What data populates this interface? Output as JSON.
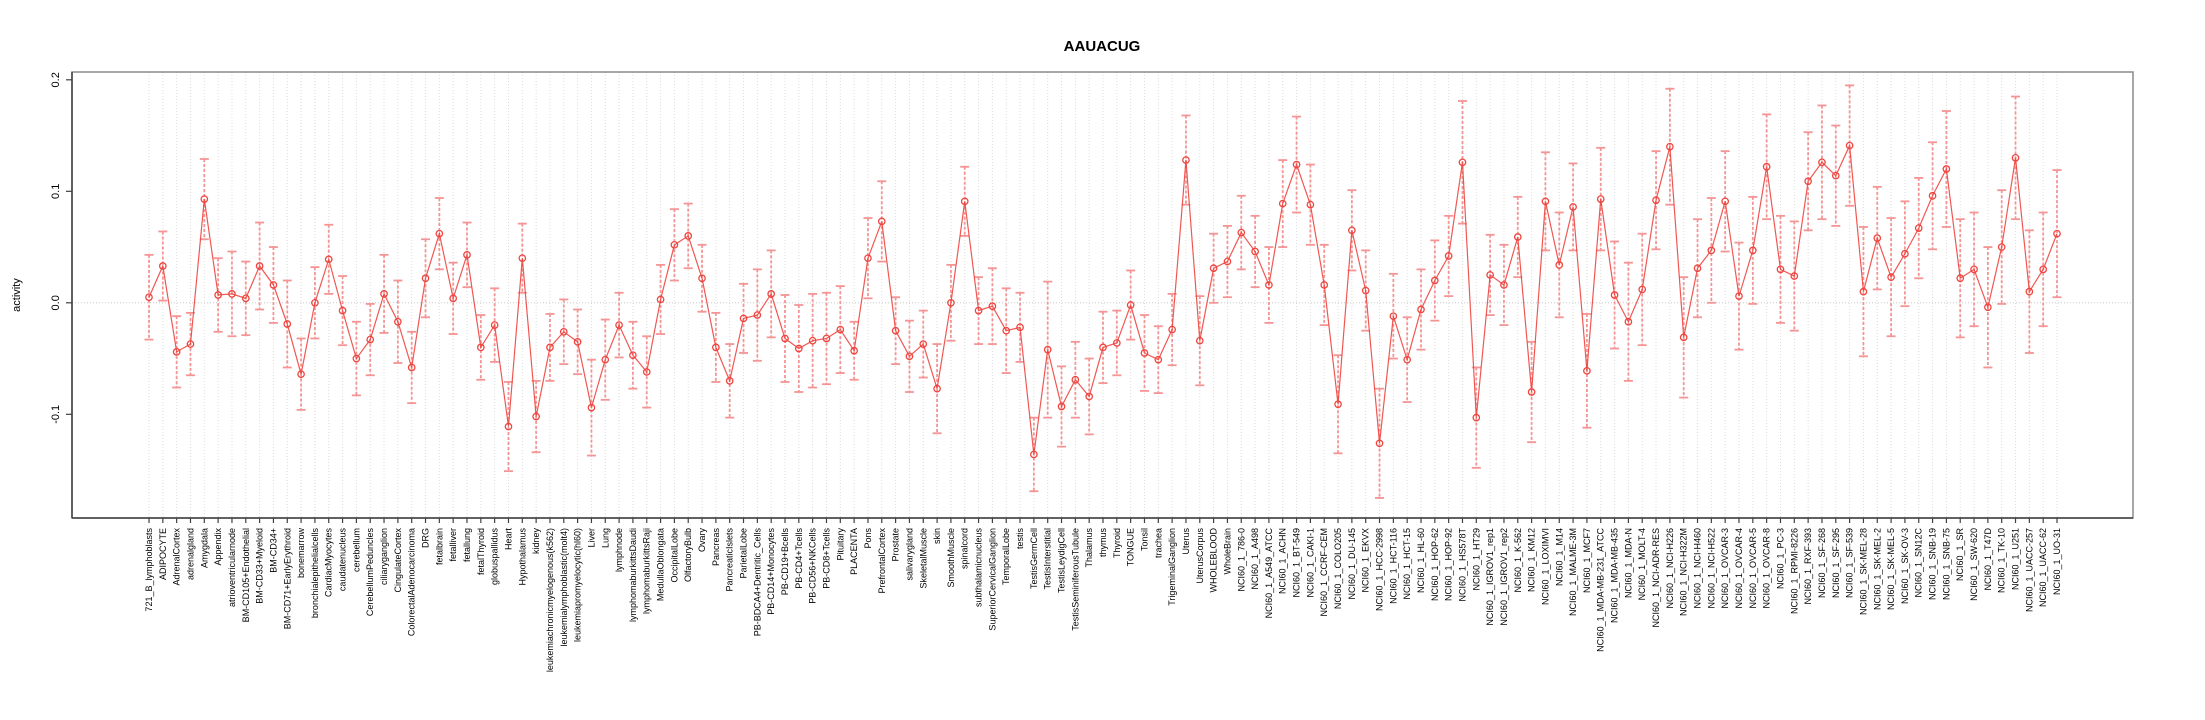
{
  "chart_data": {
    "type": "line",
    "title": "AAUACUG",
    "xlabel": "",
    "ylabel": "activity",
    "ylim": [
      -0.193,
      0.207
    ],
    "ytick_values": [
      0.2,
      0.1,
      0.0,
      -0.1
    ],
    "ytick_labels": [
      "0.2",
      "0.1",
      "0.0",
      "-0.1"
    ],
    "grid": "vertical dotted line per category; horizontal dotted line at y=0",
    "legend": "none",
    "error_bars": true,
    "marker": "open-circle",
    "categories": [
      "721_B_lymphoblasts",
      "ADIPOCYTE",
      "AdrenalCortex",
      "adrenalgland",
      "Amygdala",
      "Appendix",
      "atrioventricularnode",
      "BM-CD105+Endothelial",
      "BM-CD33+Myeloid",
      "BM-CD34+",
      "BM-CD71+EarlyErythroid",
      "bonemarrow",
      "bronchialepithelialcells",
      "CardiacMyocytes",
      "caudatenucleus",
      "cerebellum",
      "CerebellumPeduncles",
      "ciliaryganglion",
      "CingulateCortex",
      "ColorectalAdenocarcinoma",
      "DRG",
      "fetalbrain",
      "fetalliver",
      "fetallung",
      "fetalThyroid",
      "globuspallidus",
      "Heart",
      "Hypothalamus",
      "kidney",
      "leukemiachronicmyelogenous(k562)",
      "leukemialymphoblastic(molt4)",
      "leukemiapromyelocytic(hl60)",
      "Liver",
      "Lung",
      "lymphnode",
      "lymphomaburkittsDaudi",
      "lymphomaburkittsRaji",
      "MedullaOblongata",
      "OccipitalLobe",
      "OlfactoryBulb",
      "Ovary",
      "Pancreas",
      "PancreaticIslets",
      "ParietalLobe",
      "PB-BDCA4+Dentritic_Cells",
      "PB-CD14+Monocytes",
      "PB-CD19+Bcells",
      "PB-CD4+Tcells",
      "PB-CD56+NKCells",
      "PB-CD8+Tcells",
      "Pituitary",
      "PLACENTA",
      "Pons",
      "PrefrontalCortex",
      "Prostate",
      "salivarygland",
      "SkeletalMuscle",
      "skin",
      "SmoothMuscle",
      "spinalcord",
      "subthalamicnucleus",
      "SuperiorCervicalGanglion",
      "TemporalLobe",
      "testis",
      "TestisGermCell",
      "TestisInterstitial",
      "TestisLeydigCell",
      "TestisSeminiferousTubule",
      "Thalamus",
      "thymus",
      "Thyroid",
      "TONGUE",
      "Tonsil",
      "trachea",
      "TrigeminalGanglion",
      "Uterus",
      "UterusCorpus",
      "WHOLEBLOOD",
      "WholeBrain",
      "NCI60_1_786-0",
      "NCI60_1_A498",
      "NCI60_1_A549_ATCC",
      "NCI60_1_ACHN",
      "NCI60_1_BT-549",
      "NCI60_1_CAKI-1",
      "NCI60_1_CCRF-CEM",
      "NCI60_1_COLO205",
      "NCI60_1_DU-145",
      "NCI60_1_EKVX",
      "NCI60_1_HCC-2998",
      "NCI60_1_HCT-116",
      "NCI60_1_HCT-15",
      "NCI60_1_HL-60",
      "NCI60_1_HOP-62",
      "NCI60_1_HOP-92",
      "NCI60_1_HS578T",
      "NCI60_1_HT29",
      "NCI60_1_IGROV1_rep1",
      "NCI60_1_IGROV1_rep2",
      "NCI60_1_K-562",
      "NCI60_1_KM12",
      "NCI60_1_LOXIMVI",
      "NCI60_1_M14",
      "NCI60_1_MALME-3M",
      "NCI60_1_MCF7",
      "NCI60_1_MDA-MB-231_ATCC",
      "NCI60_1_MDA-MB-435",
      "NCI60_1_MDA-N",
      "NCI60_1_MOLT-4",
      "NCI60_1_NCI-ADR-RES",
      "NCI60_1_NCI-H226",
      "NCI60_1_NCI-H322M",
      "NCI60_1_NCI-H460",
      "NCI60_1_NCI-H522",
      "NCI60_1_OVCAR-3",
      "NCI60_1_OVCAR-4",
      "NCI60_1_OVCAR-5",
      "NCI60_1_OVCAR-8",
      "NCI60_1_PC-3",
      "NCI60_1_RPMI-8226",
      "NCI60_1_RXF-393",
      "NCI60_1_SF-268",
      "NCI60_1_SF-295",
      "NCI60_1_SF-539",
      "NCI60_1_SK-MEL-28",
      "NCI60_1_SK-MEL-2",
      "NCI60_1_SK-MEL-5",
      "NCI60_1_SK-OV-3",
      "NCI60_1_SN12C",
      "NCI60_1_SNB-19",
      "NCI60_1_SNB-75",
      "NCI60_1_SR",
      "NCI60_1_SW-620",
      "NCI60_1_T47D",
      "NCI60_1_TK-10",
      "NCI60_1_U251",
      "NCI60_1_UACC-257",
      "NCI60_1_UACC-62",
      "NCI60_1_UO-31"
    ],
    "values": [
      0.005,
      0.033,
      -0.044,
      -0.037,
      0.093,
      0.007,
      0.008,
      0.004,
      0.033,
      0.016,
      -0.019,
      -0.064,
      0.0,
      0.039,
      -0.007,
      -0.05,
      -0.033,
      0.008,
      -0.017,
      -0.058,
      0.022,
      0.062,
      0.004,
      0.043,
      -0.04,
      -0.02,
      -0.111,
      0.04,
      -0.102,
      -0.04,
      -0.026,
      -0.035,
      -0.094,
      -0.051,
      -0.02,
      -0.047,
      -0.062,
      0.003,
      0.052,
      0.06,
      0.022,
      -0.04,
      -0.07,
      -0.014,
      -0.011,
      0.008,
      -0.032,
      -0.041,
      -0.034,
      -0.032,
      -0.024,
      -0.043,
      0.04,
      0.073,
      -0.025,
      -0.048,
      -0.037,
      -0.077,
      0.0,
      0.091,
      -0.007,
      -0.003,
      -0.025,
      -0.022,
      -0.136,
      -0.042,
      -0.093,
      -0.069,
      -0.084,
      -0.04,
      -0.036,
      -0.002,
      -0.045,
      -0.051,
      -0.024,
      0.128,
      -0.034,
      0.031,
      0.037,
      0.063,
      0.046,
      0.016,
      0.089,
      0.124,
      0.088,
      0.016,
      -0.091,
      0.065,
      0.011,
      -0.126,
      -0.012,
      -0.051,
      -0.006,
      0.02,
      0.042,
      0.126,
      -0.103,
      0.025,
      0.016,
      0.059,
      -0.08,
      0.091,
      0.034,
      0.086,
      -0.061,
      0.093,
      0.007,
      -0.017,
      0.012,
      0.092,
      0.14,
      -0.031,
      0.031,
      0.047,
      0.091,
      0.006,
      0.047,
      0.122,
      0.03,
      0.024,
      0.109,
      0.126,
      0.114,
      0.141,
      0.01,
      0.058,
      0.023,
      0.044,
      0.067,
      0.096,
      0.12,
      0.022,
      0.03,
      -0.004,
      0.05,
      0.13,
      0.01,
      0.03,
      0.062
    ],
    "error": [
      0.038,
      0.031,
      0.032,
      0.028,
      0.036,
      0.033,
      0.038,
      0.033,
      0.039,
      0.034,
      0.039,
      0.032,
      0.032,
      0.031,
      0.031,
      0.033,
      0.032,
      0.035,
      0.037,
      0.032,
      0.035,
      0.032,
      0.032,
      0.029,
      0.029,
      0.033,
      0.04,
      0.031,
      0.032,
      0.03,
      0.029,
      0.029,
      0.043,
      0.036,
      0.029,
      0.03,
      0.032,
      0.031,
      0.032,
      0.029,
      0.03,
      0.031,
      0.033,
      0.031,
      0.041,
      0.039,
      0.039,
      0.039,
      0.042,
      0.041,
      0.039,
      0.026,
      0.036,
      0.036,
      0.03,
      0.032,
      0.03,
      0.04,
      0.034,
      0.031,
      0.03,
      0.034,
      0.038,
      0.031,
      0.033,
      0.061,
      0.036,
      0.034,
      0.034,
      0.032,
      0.029,
      0.031,
      0.034,
      0.03,
      0.032,
      0.04,
      0.04,
      0.031,
      0.032,
      0.033,
      0.032,
      0.034,
      0.039,
      0.043,
      0.036,
      0.036,
      0.044,
      0.036,
      0.036,
      0.049,
      0.038,
      0.038,
      0.036,
      0.036,
      0.036,
      0.055,
      0.045,
      0.036,
      0.036,
      0.036,
      0.045,
      0.044,
      0.047,
      0.039,
      0.051,
      0.046,
      0.048,
      0.053,
      0.05,
      0.044,
      0.052,
      0.054,
      0.044,
      0.047,
      0.045,
      0.048,
      0.048,
      0.047,
      0.048,
      0.049,
      0.044,
      0.051,
      0.045,
      0.054,
      0.058,
      0.046,
      0.053,
      0.047,
      0.045,
      0.048,
      0.052,
      0.053,
      0.051,
      0.054,
      0.051,
      0.055,
      0.055,
      0.051,
      0.057
    ],
    "colors": {
      "point": "#ee453f",
      "line": "#ee453f",
      "error_bar": "#f49494",
      "grid": "#dcdcdc",
      "zero_line": "#c8c8c8",
      "axis": "#404040",
      "box": "#8a8a8a",
      "text": "#000000",
      "background": "#ffffff"
    }
  }
}
